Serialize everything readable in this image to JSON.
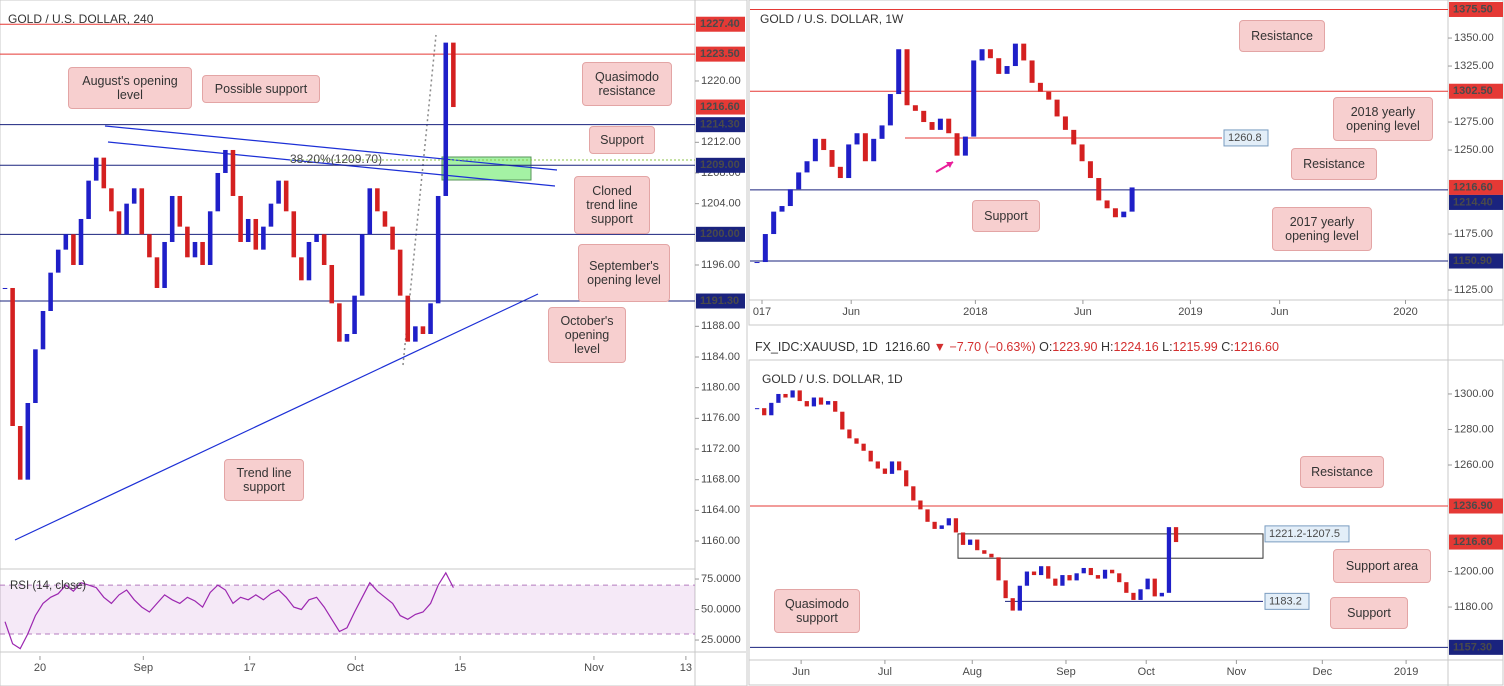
{
  "chart_data": [
    {
      "type": "candlestick",
      "title": "GOLD / U.S. DOLLAR, 240",
      "colors": {
        "up": "#1f1fc8",
        "down": "#d42020"
      },
      "xlim": [
        -0.66,
        90.8
      ],
      "xticks": [
        {
          "value": 4.6,
          "label": "20"
        },
        {
          "value": 18.2,
          "label": "Sep"
        },
        {
          "value": 32.2,
          "label": "17"
        },
        {
          "value": 46.1,
          "label": "Oct"
        },
        {
          "value": 59.9,
          "label": "15"
        },
        {
          "value": 77.5,
          "label": "Nov"
        },
        {
          "value": 89.6,
          "label": "13"
        }
      ],
      "ylim": [
        1156.48,
        1230.56
      ],
      "yticks": [
        {
          "value": 1220,
          "label": "1220.00"
        },
        {
          "value": 1212,
          "label": "1212.00"
        },
        {
          "value": 1208,
          "label": "1208.00"
        },
        {
          "value": 1204,
          "label": "1204.00"
        },
        {
          "value": 1196,
          "label": "1196.00"
        },
        {
          "value": 1188,
          "label": "1188.00"
        },
        {
          "value": 1184,
          "label": "1184.00"
        },
        {
          "value": 1180,
          "label": "1180.00"
        },
        {
          "value": 1176,
          "label": "1176.00"
        },
        {
          "value": 1172,
          "label": "1172.00"
        },
        {
          "value": 1168,
          "label": "1168.00"
        },
        {
          "value": 1164,
          "label": "1164.00"
        },
        {
          "value": 1160,
          "label": "1160.00"
        }
      ],
      "values": [
        1193,
        1175,
        1168,
        1178,
        1185,
        1190,
        1195,
        1198,
        1200,
        1196,
        1202,
        1207,
        1210,
        1206,
        1203,
        1200,
        1204,
        1206,
        1200,
        1197,
        1193,
        1199,
        1205,
        1201,
        1197,
        1199,
        1196,
        1203,
        1208,
        1211,
        1205,
        1199,
        1202,
        1198,
        1201,
        1204,
        1207,
        1203,
        1197,
        1194,
        1199,
        1200,
        1196,
        1191,
        1186,
        1187,
        1192,
        1200,
        1206,
        1203,
        1201,
        1198,
        1192,
        1186,
        1188,
        1187,
        1191,
        1205,
        1225,
        1216.6
      ],
      "levels": [
        {
          "value": 1227.4,
          "label": "1227.40",
          "color": "#e53935",
          "line": true
        },
        {
          "value": 1223.5,
          "label": "1223.50",
          "color": "#e53935",
          "line": true
        },
        {
          "value": 1216.6,
          "label": "1216.60",
          "color": "#e53935",
          "line": false
        },
        {
          "value": 1214.3,
          "label": "1214.30",
          "color": "#1a237e",
          "line": true
        },
        {
          "value": 1209,
          "label": "1209.00",
          "color": "#1a237e",
          "line": true
        },
        {
          "value": 1200,
          "label": "1200.00",
          "color": "#1a237e",
          "line": true
        },
        {
          "value": 1191.3,
          "label": "1191.30",
          "color": "#1a237e",
          "line": true
        }
      ],
      "fib": {
        "value": 1209.7,
        "label": "38.20%(1209.70)",
        "color": "#8bc34a"
      },
      "annotations": [
        "August's opening level",
        "Possible support",
        "Quasimodo resistance",
        "Support",
        "Cloned trend line support",
        "September's opening level",
        "October's opening level",
        "Trend line support"
      ],
      "indicator": {
        "name": "RSI (14, close)",
        "color": "#9c27b0",
        "ylim": [
          15.2,
          82.4
        ],
        "band": [
          30,
          70
        ],
        "yticks": [
          {
            "value": 75,
            "label": "75.0000"
          },
          {
            "value": 50,
            "label": "50.0000"
          },
          {
            "value": 25,
            "label": "25.0000"
          }
        ],
        "values": [
          40,
          22,
          18,
          30,
          45,
          55,
          60,
          63,
          70,
          65,
          72,
          70,
          68,
          60,
          55,
          62,
          66,
          58,
          52,
          48,
          55,
          62,
          58,
          55,
          60,
          57,
          52,
          64,
          70,
          66,
          55,
          60,
          58,
          62,
          58,
          63,
          66,
          60,
          52,
          50,
          58,
          60,
          52,
          42,
          32,
          35,
          48,
          60,
          72,
          65,
          60,
          55,
          45,
          42,
          46,
          48,
          55,
          70,
          80,
          68
        ]
      }
    },
    {
      "type": "candlestick",
      "title": "GOLD / U.S. DOLLAR, 1W",
      "colors": {
        "up": "#1f1fc8",
        "down": "#d42020"
      },
      "xlim": [
        -0.84,
        82.9
      ],
      "xticks": [
        {
          "value": 0.6,
          "label": "017"
        },
        {
          "value": 11.3,
          "label": "Jun"
        },
        {
          "value": 26.2,
          "label": "2018"
        },
        {
          "value": 39.1,
          "label": "Jun"
        },
        {
          "value": 52,
          "label": "2019"
        },
        {
          "value": 62.7,
          "label": "Jun"
        },
        {
          "value": 77.8,
          "label": "2020"
        }
      ],
      "ylim": [
        1116.1,
        1379.5
      ],
      "yticks": [
        {
          "value": 1350,
          "label": "1350.00"
        },
        {
          "value": 1325,
          "label": "1325.00"
        },
        {
          "value": 1275,
          "label": "1275.00"
        },
        {
          "value": 1250,
          "label": "1250.00"
        },
        {
          "value": 1175,
          "label": "1175.00"
        },
        {
          "value": 1125,
          "label": "1125.00"
        }
      ],
      "values": [
        1150,
        1175,
        1195,
        1200,
        1215,
        1230,
        1240,
        1260,
        1250,
        1235,
        1225,
        1255,
        1265,
        1240,
        1260,
        1272,
        1300,
        1340,
        1290,
        1285,
        1275,
        1268,
        1278,
        1265,
        1245,
        1262,
        1330,
        1340,
        1332,
        1318,
        1325,
        1345,
        1330,
        1310,
        1302,
        1295,
        1280,
        1268,
        1255,
        1240,
        1225,
        1205,
        1198,
        1190,
        1195,
        1216.6
      ],
      "levels": [
        {
          "value": 1375.5,
          "label": "1375.50",
          "color": "#e53935",
          "line": true
        },
        {
          "value": 1302.5,
          "label": "1302.50",
          "color": "#e53935",
          "line": true
        },
        {
          "value": 1216.6,
          "label": "1216.60",
          "color": "#e53935",
          "line": false
        },
        {
          "value": 1214.4,
          "label": "1214.40",
          "color": "#1a237e",
          "line": true
        },
        {
          "value": 1150.9,
          "label": "1150.90",
          "color": "#1a237e",
          "line": true
        }
      ],
      "segment": {
        "value": 1260.8,
        "color": "#e53935"
      },
      "annotations": [
        "Resistance",
        "2018 yearly opening level",
        "Resistance",
        "Support",
        "2017 yearly opening level"
      ]
    },
    {
      "type": "candlestick",
      "title": "GOLD / U.S. DOLLAR, 1D",
      "colors": {
        "up": "#1f1fc8",
        "down": "#d42020"
      },
      "xlim": [
        -1,
        97.3
      ],
      "xticks": [
        {
          "value": 6.2,
          "label": "Jun"
        },
        {
          "value": 18,
          "label": "Jul"
        },
        {
          "value": 30.3,
          "label": "Aug"
        },
        {
          "value": 43.5,
          "label": "Sep"
        },
        {
          "value": 54.8,
          "label": "Oct"
        },
        {
          "value": 67.5,
          "label": "Nov"
        },
        {
          "value": 79.6,
          "label": "Dec"
        },
        {
          "value": 91.4,
          "label": "2019"
        }
      ],
      "ylim": [
        1151.3,
        1318.0
      ],
      "yticks": [
        {
          "value": 1300,
          "label": "1300.00"
        },
        {
          "value": 1280,
          "label": "1280.00"
        },
        {
          "value": 1260,
          "label": "1260.00"
        },
        {
          "value": 1200,
          "label": "1200.00"
        },
        {
          "value": 1180,
          "label": "1180.00"
        }
      ],
      "values": [
        1292,
        1288,
        1295,
        1300,
        1298,
        1302,
        1296,
        1293,
        1298,
        1294,
        1296,
        1290,
        1280,
        1275,
        1272,
        1268,
        1262,
        1258,
        1255,
        1262,
        1257,
        1248,
        1240,
        1235,
        1228,
        1224,
        1226,
        1230,
        1222,
        1215,
        1218,
        1212,
        1210,
        1208,
        1195,
        1185,
        1178,
        1192,
        1200,
        1198,
        1203,
        1196,
        1192,
        1198,
        1195,
        1199,
        1202,
        1198,
        1196,
        1201,
        1199,
        1194,
        1188,
        1184,
        1190,
        1196,
        1186,
        1188,
        1225,
        1216.6
      ],
      "levels": [
        {
          "value": 1236.9,
          "label": "1236.90",
          "color": "#e53935",
          "line": true
        },
        {
          "value": 1216.6,
          "label": "1216.60",
          "color": "#e53935",
          "line": false
        },
        {
          "value": 1157.3,
          "label": "1157.30",
          "color": "#1a237e",
          "line": true
        }
      ],
      "segment": {
        "value": 1183.2,
        "color": "#1a237e"
      },
      "zone": {
        "top": 1221.2,
        "bottom": 1207.5,
        "label": "1221.2-1207.5"
      },
      "annotations": [
        "Resistance",
        "Support area",
        "Support",
        "Quasimodo support"
      ]
    }
  ],
  "quote": {
    "symbol": "FX_IDC:XAUUSD, 1D",
    "last": "1216.60",
    "change": "−7.70 (−0.63%)",
    "fields": [
      {
        "label": "O:",
        "value": "1223.90"
      },
      {
        "label": "H:",
        "value": "1224.16"
      },
      {
        "label": "L:",
        "value": "1215.99"
      },
      {
        "label": "C:",
        "value": "1216.60"
      }
    ]
  }
}
